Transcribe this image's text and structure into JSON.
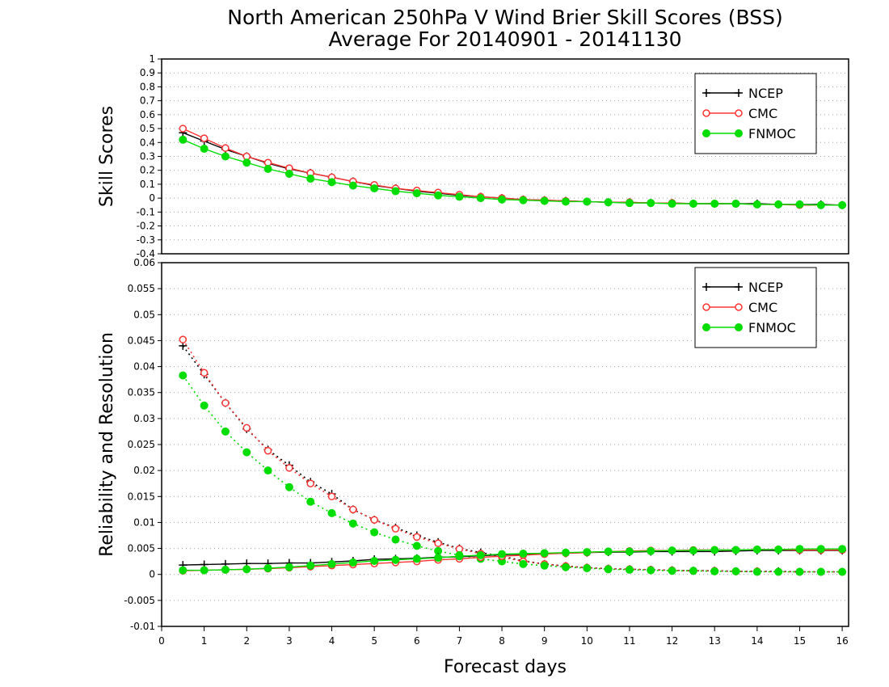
{
  "chart_data": {
    "type": "line",
    "title": "North American 250hPa V Wind Brier Skill Scores (BSS)",
    "subtitle": "Average For 20140901 - 20141130",
    "xlabel": "Forecast days",
    "xlim": [
      0,
      16.15
    ],
    "xticks": [
      "0",
      "1",
      "2",
      "3",
      "4",
      "5",
      "6",
      "7",
      "8",
      "9",
      "10",
      "11",
      "12",
      "13",
      "14",
      "15",
      "16"
    ],
    "x": [
      0.5,
      1,
      1.5,
      2,
      2.5,
      3,
      3.5,
      4,
      4.5,
      5,
      5.5,
      6,
      6.5,
      7,
      7.5,
      8,
      8.5,
      9,
      9.5,
      10,
      10.5,
      11,
      11.5,
      12,
      12.5,
      13,
      13.5,
      14,
      14.5,
      15,
      15.5,
      16
    ],
    "colors": {
      "NCEP": "#000000",
      "CMC": "#ff3333",
      "FNMOC": "#00dd00"
    },
    "legend_position": "top-right",
    "grid": "horizontal dotted",
    "panels": [
      {
        "ylabel": "Skill Scores",
        "ylim": [
          -0.4,
          1
        ],
        "yticks": [
          "-0.4",
          "-0.3",
          "-0.2",
          "-0.1",
          "0",
          "0.1",
          "0.2",
          "0.3",
          "0.4",
          "0.5",
          "0.6",
          "0.7",
          "0.8",
          "0.9",
          "1"
        ],
        "legend": [
          "NCEP",
          "CMC",
          "FNMOC"
        ],
        "series": [
          {
            "name": "NCEP",
            "style": "solid",
            "values": [
              0.47,
              0.41,
              0.35,
              0.3,
              0.25,
              0.21,
              0.18,
              0.15,
              0.12,
              0.09,
              0.07,
              0.05,
              0.035,
              0.02,
              0.01,
              0.0,
              -0.01,
              -0.015,
              -0.02,
              -0.025,
              -0.03,
              -0.03,
              -0.035,
              -0.035,
              -0.04,
              -0.04,
              -0.04,
              -0.04,
              -0.045,
              -0.045,
              -0.045,
              -0.05
            ]
          },
          {
            "name": "CMC",
            "style": "solid",
            "values": [
              0.5,
              0.43,
              0.36,
              0.3,
              0.255,
              0.215,
              0.18,
              0.15,
              0.12,
              0.095,
              0.07,
              0.055,
              0.04,
              0.025,
              0.01,
              0.0,
              -0.01,
              -0.015,
              -0.02,
              -0.025,
              -0.03,
              -0.03,
              -0.035,
              -0.035,
              -0.04,
              -0.04,
              -0.04,
              -0.045,
              -0.045,
              -0.05,
              -0.05,
              -0.05
            ]
          },
          {
            "name": "FNMOC",
            "style": "solid",
            "values": [
              0.42,
              0.355,
              0.3,
              0.255,
              0.21,
              0.175,
              0.14,
              0.115,
              0.09,
              0.07,
              0.05,
              0.035,
              0.02,
              0.01,
              0.0,
              -0.01,
              -0.015,
              -0.02,
              -0.025,
              -0.025,
              -0.03,
              -0.035,
              -0.035,
              -0.04,
              -0.04,
              -0.04,
              -0.04,
              -0.045,
              -0.045,
              -0.045,
              -0.05,
              -0.05
            ]
          }
        ]
      },
      {
        "ylabel": "Reliability and Resolution",
        "ylim": [
          -0.01,
          0.06
        ],
        "yticks": [
          "-0.01",
          "-0.005",
          "0",
          "0.005",
          "0.01",
          "0.015",
          "0.02",
          "0.025",
          "0.03",
          "0.035",
          "0.04",
          "0.045",
          "0.05",
          "0.055",
          "0.06"
        ],
        "legend": [
          "NCEP",
          "CMC",
          "FNMOC"
        ],
        "series": [
          {
            "name": "NCEP",
            "style": "dotted",
            "values": [
              0.044,
              0.0385,
              0.033,
              0.028,
              0.024,
              0.021,
              0.0178,
              0.0155,
              0.0125,
              0.0105,
              0.009,
              0.0075,
              0.0062,
              0.005,
              0.0042,
              0.0035,
              0.0026,
              0.002,
              0.0016,
              0.0013,
              0.0011,
              0.001,
              0.0009,
              0.0008,
              0.0007,
              0.0007,
              0.0006,
              0.0006,
              0.0006,
              0.0005,
              0.0005,
              0.0005
            ]
          },
          {
            "name": "CMC",
            "style": "dotted",
            "values": [
              0.0452,
              0.0388,
              0.033,
              0.0282,
              0.0238,
              0.0205,
              0.0175,
              0.015,
              0.0125,
              0.0105,
              0.0088,
              0.0072,
              0.006,
              0.0049,
              0.004,
              0.0033,
              0.0025,
              0.002,
              0.0016,
              0.0013,
              0.0011,
              0.001,
              0.0009,
              0.0008,
              0.0007,
              0.0007,
              0.0006,
              0.0006,
              0.0005,
              0.0005,
              0.0005,
              0.0005
            ]
          },
          {
            "name": "FNMOC",
            "style": "dotted",
            "values": [
              0.0383,
              0.0325,
              0.0275,
              0.0235,
              0.02,
              0.0168,
              0.014,
              0.0118,
              0.0098,
              0.0081,
              0.0067,
              0.0055,
              0.0045,
              0.0037,
              0.003,
              0.0025,
              0.002,
              0.0017,
              0.0014,
              0.0012,
              0.001,
              0.0009,
              0.0008,
              0.0007,
              0.0007,
              0.0006,
              0.0006,
              0.0005,
              0.0005,
              0.0005,
              0.0005,
              0.0005
            ]
          },
          {
            "name": "NCEP",
            "style": "solid",
            "values": [
              0.0018,
              0.0019,
              0.002,
              0.0021,
              0.0021,
              0.0022,
              0.0022,
              0.0024,
              0.0026,
              0.0029,
              0.003,
              0.0031,
              0.0033,
              0.0034,
              0.0036,
              0.0038,
              0.0039,
              0.004,
              0.0041,
              0.0042,
              0.0043,
              0.0043,
              0.0044,
              0.0044,
              0.0044,
              0.0044,
              0.0045,
              0.0046,
              0.0046,
              0.0046,
              0.0046,
              0.0046
            ]
          },
          {
            "name": "CMC",
            "style": "solid",
            "values": [
              0.0007,
              0.0008,
              0.0009,
              0.001,
              0.0011,
              0.0013,
              0.0015,
              0.0017,
              0.0019,
              0.0021,
              0.0023,
              0.0025,
              0.0028,
              0.003,
              0.0033,
              0.0035,
              0.0037,
              0.0039,
              0.0041,
              0.0042,
              0.0044,
              0.0045,
              0.0046,
              0.0046,
              0.0047,
              0.0047,
              0.0047,
              0.0048,
              0.0048,
              0.0047,
              0.0047,
              0.0047
            ]
          },
          {
            "name": "FNMOC",
            "style": "solid",
            "values": [
              0.0008,
              0.0008,
              0.0009,
              0.001,
              0.0012,
              0.0014,
              0.0017,
              0.002,
              0.0023,
              0.0026,
              0.0028,
              0.003,
              0.0032,
              0.0035,
              0.0037,
              0.0039,
              0.004,
              0.0041,
              0.0042,
              0.0043,
              0.0044,
              0.0044,
              0.0045,
              0.0046,
              0.0046,
              0.0047,
              0.0047,
              0.0048,
              0.0048,
              0.0049,
              0.0049,
              0.0049
            ]
          }
        ]
      }
    ]
  }
}
